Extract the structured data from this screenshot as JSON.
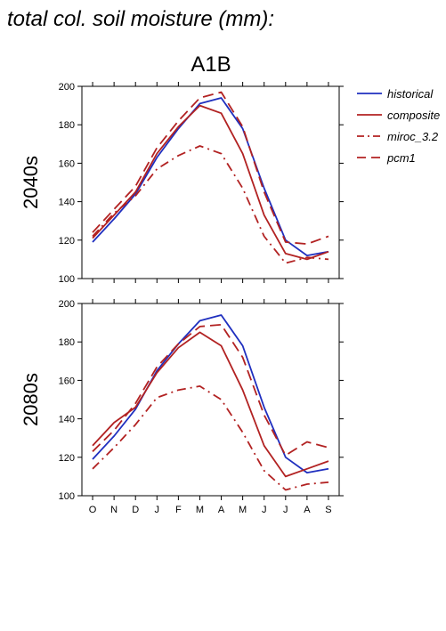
{
  "title": "total col. soil moisture (mm):",
  "chart_data": {
    "type": "line",
    "scenario": "A1B",
    "categories": [
      "O",
      "N",
      "D",
      "J",
      "F",
      "M",
      "A",
      "M",
      "J",
      "J",
      "A",
      "S"
    ],
    "ylim": [
      100,
      200
    ],
    "yticks": [
      100,
      120,
      140,
      160,
      180,
      200
    ],
    "legend": {
      "placement": "right",
      "entries": [
        {
          "name": "historical",
          "color": "#1f2fbf",
          "style": "solid"
        },
        {
          "name": "composite",
          "color": "#b22222",
          "style": "solid"
        },
        {
          "name": "miroc_3.2",
          "color": "#b22222",
          "style": "dashdot"
        },
        {
          "name": "pcm1",
          "color": "#b22222",
          "style": "dash"
        }
      ]
    },
    "panels": [
      {
        "label": "2040s",
        "series": [
          {
            "name": "historical",
            "values": [
              119,
              131,
              144,
              163,
              178,
              191,
              194,
              178,
              147,
              120,
              112,
              114
            ]
          },
          {
            "name": "composite",
            "values": [
              121,
              133,
              145,
              165,
              179,
              190,
              186,
              165,
              133,
              113,
              110,
              114
            ]
          },
          {
            "name": "miroc_3.2",
            "values": [
              122,
              134,
              143,
              157,
              164,
              169,
              165,
              147,
              122,
              108,
              111,
              110
            ]
          },
          {
            "name": "pcm1",
            "values": [
              124,
              136,
              148,
              168,
              182,
              194,
              197,
              179,
              145,
              119,
              118,
              122
            ]
          }
        ]
      },
      {
        "label": "2080s",
        "series": [
          {
            "name": "historical",
            "values": [
              119,
              131,
              145,
              165,
              179,
              191,
              194,
              178,
              146,
              120,
              112,
              114
            ]
          },
          {
            "name": "composite",
            "values": [
              126,
              138,
              146,
              164,
              177,
              185,
              178,
              155,
              126,
              110,
              114,
              118
            ]
          },
          {
            "name": "miroc_3.2",
            "values": [
              114,
              125,
              137,
              151,
              155,
              157,
              150,
              133,
              113,
              103,
              106,
              107
            ]
          },
          {
            "name": "pcm1",
            "values": [
              123,
              134,
              148,
              167,
              179,
              188,
              189,
              172,
              142,
              121,
              128,
              125
            ]
          }
        ]
      }
    ]
  }
}
